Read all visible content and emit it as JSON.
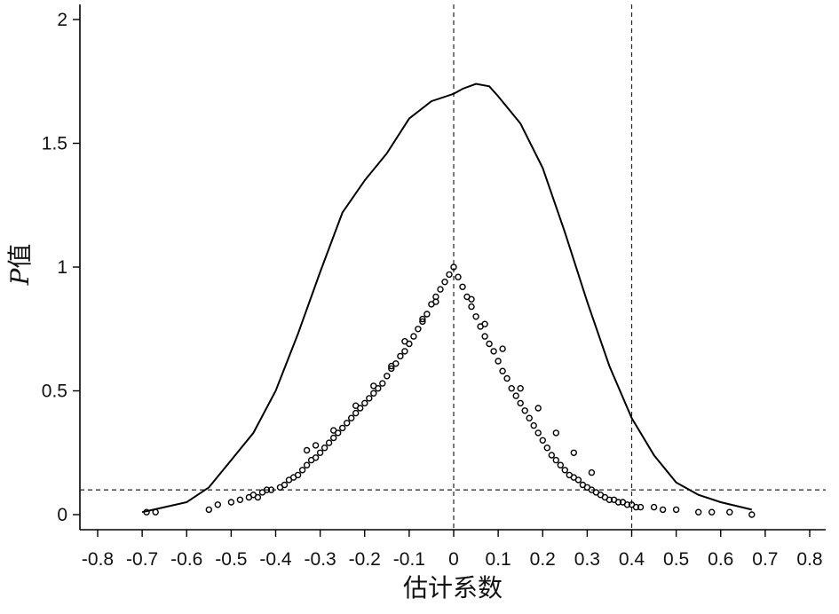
{
  "chart_data": {
    "type": "scatter",
    "xlabel": "估计系数",
    "ylabel_parts": [
      "P",
      "值"
    ],
    "xlim": [
      -0.8,
      0.8
    ],
    "ylim": [
      0,
      2
    ],
    "x_ticks": [
      "-0.8",
      "-0.7",
      "-0.6",
      "-0.5",
      "-0.4",
      "-0.3",
      "-0.2",
      "-0.1",
      "0",
      "0.1",
      "0.2",
      "0.3",
      "0.4",
      "0.5",
      "0.6",
      "0.7",
      "0.8"
    ],
    "y_ticks": [
      "0",
      "0.5",
      "1",
      "1.5",
      "2"
    ],
    "reference_lines": {
      "vertical": [
        0,
        0.4
      ],
      "horizontal": [
        0.1
      ],
      "style": "dashed"
    },
    "density_curve": {
      "x": [
        -0.7,
        -0.65,
        -0.6,
        -0.55,
        -0.5,
        -0.45,
        -0.4,
        -0.35,
        -0.3,
        -0.25,
        -0.2,
        -0.15,
        -0.1,
        -0.05,
        0,
        0.02,
        0.05,
        0.08,
        0.1,
        0.15,
        0.2,
        0.25,
        0.3,
        0.35,
        0.4,
        0.45,
        0.5,
        0.55,
        0.6,
        0.67
      ],
      "y": [
        0.01,
        0.03,
        0.05,
        0.11,
        0.22,
        0.33,
        0.5,
        0.73,
        0.98,
        1.22,
        1.35,
        1.46,
        1.6,
        1.67,
        1.7,
        1.72,
        1.74,
        1.73,
        1.69,
        1.58,
        1.4,
        1.14,
        0.86,
        0.6,
        0.39,
        0.24,
        0.13,
        0.08,
        0.05,
        0.02
      ]
    },
    "scatter_points": {
      "x": [
        -0.69,
        -0.67,
        -0.55,
        -0.53,
        -0.5,
        -0.48,
        -0.46,
        -0.45,
        -0.44,
        -0.43,
        -0.42,
        -0.41,
        -0.39,
        -0.38,
        -0.37,
        -0.36,
        -0.35,
        -0.34,
        -0.33,
        -0.32,
        -0.31,
        -0.3,
        -0.29,
        -0.28,
        -0.27,
        -0.26,
        -0.25,
        -0.24,
        -0.23,
        -0.22,
        -0.21,
        -0.2,
        -0.19,
        -0.18,
        -0.17,
        -0.16,
        -0.15,
        -0.14,
        -0.13,
        -0.12,
        -0.11,
        -0.1,
        -0.09,
        -0.08,
        -0.07,
        -0.06,
        -0.05,
        -0.04,
        -0.03,
        -0.02,
        -0.01,
        0,
        0.01,
        0.02,
        0.03,
        0.04,
        0.05,
        0.06,
        0.07,
        0.08,
        0.09,
        0.1,
        0.11,
        0.12,
        0.13,
        0.14,
        0.15,
        0.16,
        0.17,
        0.18,
        0.19,
        0.2,
        0.21,
        0.22,
        0.23,
        0.24,
        0.25,
        0.26,
        0.27,
        0.28,
        0.29,
        0.3,
        0.31,
        0.32,
        0.33,
        0.34,
        0.35,
        0.36,
        0.37,
        0.38,
        0.39,
        0.4,
        0.41,
        0.42,
        0.45,
        0.47,
        0.5,
        0.55,
        0.58,
        0.62,
        0.67,
        -0.33,
        -0.31,
        -0.27,
        -0.22,
        -0.18,
        -0.14,
        -0.11,
        -0.07,
        -0.04,
        0.04,
        0.07,
        0.11,
        0.15,
        0.19,
        0.23,
        0.27,
        0.31
      ],
      "y": [
        0.01,
        0.01,
        0.02,
        0.04,
        0.05,
        0.06,
        0.07,
        0.08,
        0.07,
        0.09,
        0.1,
        0.1,
        0.11,
        0.12,
        0.14,
        0.15,
        0.16,
        0.18,
        0.2,
        0.22,
        0.23,
        0.25,
        0.27,
        0.29,
        0.31,
        0.33,
        0.35,
        0.37,
        0.39,
        0.41,
        0.43,
        0.45,
        0.47,
        0.49,
        0.51,
        0.53,
        0.56,
        0.59,
        0.61,
        0.64,
        0.66,
        0.69,
        0.72,
        0.75,
        0.78,
        0.81,
        0.85,
        0.88,
        0.91,
        0.94,
        0.97,
        1.0,
        0.96,
        0.92,
        0.88,
        0.84,
        0.8,
        0.76,
        0.72,
        0.69,
        0.66,
        0.62,
        0.58,
        0.55,
        0.51,
        0.48,
        0.45,
        0.42,
        0.39,
        0.36,
        0.33,
        0.3,
        0.27,
        0.24,
        0.22,
        0.2,
        0.18,
        0.16,
        0.15,
        0.14,
        0.12,
        0.11,
        0.1,
        0.09,
        0.08,
        0.07,
        0.06,
        0.06,
        0.05,
        0.05,
        0.04,
        0.04,
        0.03,
        0.03,
        0.03,
        0.02,
        0.02,
        0.01,
        0.01,
        0.01,
        0.0,
        0.26,
        0.28,
        0.34,
        0.44,
        0.52,
        0.6,
        0.7,
        0.79,
        0.86,
        0.87,
        0.77,
        0.67,
        0.51,
        0.43,
        0.33,
        0.25,
        0.17
      ]
    }
  }
}
